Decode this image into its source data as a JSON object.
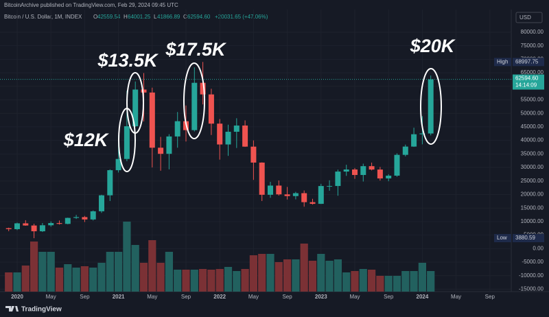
{
  "header": {
    "publisher": "BitcoinArchive published on TradingView.com, Feb 29, 2024 09:45 UTC",
    "symbol": "Bitcoin / U.S. Dollar, 1M, INDEX",
    "open_label": "O",
    "open": "42559.54",
    "high_label": "H",
    "high": "64001.25",
    "low_label": "L",
    "low": "41866.89",
    "close_label": "C",
    "close": "62594.60",
    "change": "+20031.65 (+47.06%)",
    "currency": "USD"
  },
  "chart_data": {
    "type": "candlestick",
    "categories": [
      null,
      "2020",
      null,
      null,
      null,
      "May",
      null,
      null,
      null,
      "Sep",
      null,
      null,
      null,
      "2021",
      null,
      null,
      null,
      "May",
      null,
      null,
      null,
      "Sep",
      null,
      null,
      null,
      "2022",
      null,
      null,
      null,
      "May",
      null,
      null,
      null,
      "Sep",
      null,
      null,
      null,
      "2023",
      null,
      null,
      null,
      "May",
      null,
      null,
      null,
      "Sep",
      null,
      null,
      null,
      "2024",
      null,
      null,
      null,
      "May",
      null,
      null,
      null,
      "Sep",
      null
    ],
    "open": [
      7540,
      7190,
      9350,
      8540,
      6410,
      8630,
      9450,
      9140,
      11350,
      11650,
      10780,
      13800,
      19700,
      28990,
      33140,
      45240,
      58800,
      57700,
      37300,
      35040,
      41460,
      47100,
      43800,
      61300,
      57000,
      46200,
      38500,
      43200,
      45500,
      37700,
      31800,
      19900,
      23300,
      20050,
      19420,
      20490,
      17170,
      16550,
      23140,
      23150,
      28480,
      29250,
      27220,
      30480,
      29230,
      25940,
      26970,
      34660,
      37720,
      42280,
      42559.54,
      null,
      null,
      null,
      null,
      null,
      null,
      null,
      null
    ],
    "high": [
      7750,
      9580,
      10500,
      9190,
      9460,
      10070,
      10380,
      11450,
      12470,
      12080,
      14100,
      19900,
      29300,
      41950,
      58350,
      61780,
      64900,
      59500,
      41300,
      42300,
      50500,
      52900,
      67000,
      69000,
      59100,
      47900,
      45800,
      48200,
      47400,
      40000,
      31900,
      24700,
      25200,
      22800,
      20990,
      21480,
      18400,
      23950,
      25250,
      29200,
      31000,
      29800,
      31400,
      31800,
      30200,
      27500,
      35200,
      38450,
      44700,
      48950,
      64001.25,
      null,
      null,
      null,
      null,
      null,
      null,
      null,
      null
    ],
    "low": [
      6430,
      6850,
      8450,
      3850,
      6150,
      8110,
      8900,
      8990,
      10950,
      9820,
      10400,
      13200,
      17600,
      28130,
      32300,
      45000,
      47000,
      30000,
      28800,
      29300,
      37300,
      39600,
      43300,
      53300,
      42000,
      32900,
      34300,
      37200,
      37600,
      25400,
      17600,
      18800,
      19600,
      18150,
      18200,
      15500,
      16300,
      16500,
      21400,
      19550,
      26900,
      25800,
      24800,
      28900,
      25150,
      24900,
      26550,
      34100,
      37600,
      38550,
      41866.89,
      null,
      null,
      null,
      null,
      null,
      null,
      null,
      null
    ],
    "close": [
      7190,
      9350,
      8540,
      6410,
      8630,
      9450,
      9140,
      11350,
      11650,
      10780,
      13800,
      19700,
      28990,
      33140,
      45240,
      58800,
      57700,
      37300,
      35040,
      41460,
      47100,
      43800,
      61300,
      57000,
      46200,
      38500,
      43200,
      45500,
      37700,
      31800,
      19900,
      23300,
      20050,
      19420,
      20490,
      17170,
      16550,
      23140,
      23150,
      28480,
      29250,
      27220,
      30480,
      29230,
      25940,
      26970,
      34660,
      37720,
      42280,
      42580,
      62594.6,
      null,
      null,
      null,
      null,
      null,
      null,
      null,
      null
    ],
    "volume": [
      28,
      28,
      38,
      73,
      58,
      58,
      35,
      40,
      35,
      37,
      35,
      42,
      58,
      58,
      102,
      68,
      42,
      75,
      42,
      58,
      32,
      32,
      32,
      33,
      32,
      33,
      36,
      30,
      33,
      53,
      55,
      55,
      43,
      47,
      47,
      70,
      45,
      55,
      45,
      47,
      28,
      30,
      33,
      32,
      23,
      23,
      23,
      30,
      30,
      42,
      30,
      null,
      null,
      null,
      null,
      null,
      null,
      null,
      null
    ],
    "up_color": "#26a69a",
    "down_color": "#ef5350",
    "up_volume_color": "#22615f",
    "down_volume_color": "#7b3135",
    "ylim": [
      -15900,
      84300
    ],
    "volume_lim": [
      0,
      105
    ],
    "yticks": [
      {
        "value": 80000,
        "label": "80000.00"
      },
      {
        "value": 75000,
        "label": "75000.00"
      },
      {
        "value": 70000,
        "label": "70000.00"
      },
      {
        "value": 65000,
        "label": "65000.00"
      },
      {
        "value": 60000,
        "label": "60000.00"
      },
      {
        "value": 55000,
        "label": "55000.00"
      },
      {
        "value": 50000,
        "label": "50000.00"
      },
      {
        "value": 45000,
        "label": "45000.00"
      },
      {
        "value": 40000,
        "label": "40000.00"
      },
      {
        "value": 35000,
        "label": "35000.00"
      },
      {
        "value": 30000,
        "label": "30000.00"
      },
      {
        "value": 25000,
        "label": "25000.00"
      },
      {
        "value": 20000,
        "label": "20000.00"
      },
      {
        "value": 15000,
        "label": "15000.00"
      },
      {
        "value": 10000,
        "label": "10000.00"
      },
      {
        "value": 5000,
        "label": "5000.00"
      },
      {
        "value": 0,
        "label": "0.00"
      },
      {
        "value": -5000,
        "label": "-5000.00"
      },
      {
        "value": -10000,
        "label": "-10000.00"
      },
      {
        "value": -15000,
        "label": "-15000.00"
      }
    ],
    "high_marker": {
      "label": "High",
      "value": 68997.75,
      "value_label": "68997.75"
    },
    "low_marker": {
      "label": "Low",
      "value": 3880.59,
      "value_label": "3880.59"
    },
    "last_price": {
      "value": 62594.6,
      "value_label": "62594.60",
      "countdown": "14:14:09"
    },
    "annotations": [
      "$12K",
      "$13.5K",
      "$17.5K",
      "$20K"
    ],
    "grid": true
  },
  "footer": {
    "brand": "TradingView"
  }
}
